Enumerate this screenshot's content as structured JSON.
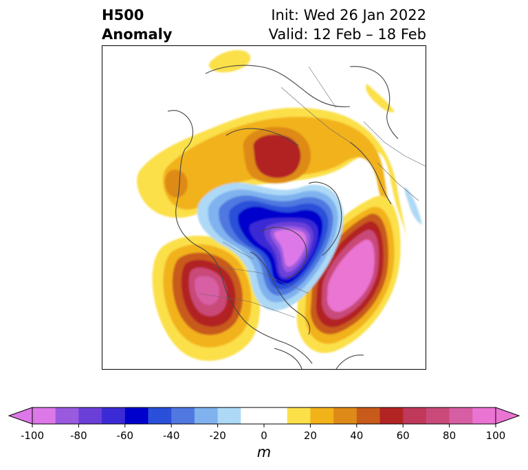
{
  "header": {
    "title_line1": "H500",
    "title_line2": "Anomaly",
    "init_label": "Init: Wed 26 Jan 2022",
    "valid_label": "Valid: 12 Feb – 18 Feb"
  },
  "colorbar": {
    "unit": "m",
    "ticks": [
      -100,
      -80,
      -60,
      -40,
      -20,
      0,
      20,
      40,
      60,
      80,
      100
    ],
    "levels": [
      -100,
      -90,
      -80,
      -70,
      -60,
      -50,
      -40,
      -30,
      -20,
      -10,
      10,
      20,
      30,
      40,
      50,
      60,
      70,
      80,
      90,
      100
    ],
    "colors": [
      "#dd78e8",
      "#9a5ae0",
      "#6a3fd8",
      "#3b2bd4",
      "#0000cc",
      "#2a4fd8",
      "#5078e0",
      "#7fb2ee",
      "#add9f6",
      "#ffffff",
      "#fbe04a",
      "#f2b21a",
      "#de8a18",
      "#c85a1a",
      "#b22424",
      "#c0385a",
      "#c94a78",
      "#d85ea4",
      "#ea74d2"
    ],
    "under_color": "#dd78e8",
    "over_color": "#ea74d2"
  },
  "map": {
    "projection": "north-polar-stereographic",
    "ocean_color": "#ffffff",
    "coastline_color": "#444444"
  }
}
